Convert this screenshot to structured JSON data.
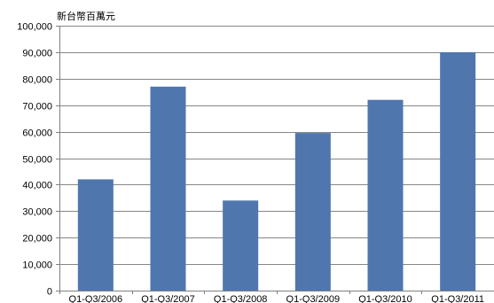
{
  "chart_data": {
    "type": "bar",
    "title": "",
    "ylabel": "新台幣百萬元",
    "xlabel": "",
    "categories": [
      "Q1-Q3/2006",
      "Q1-Q3/2007",
      "Q1-Q3/2008",
      "Q1-Q3/2009",
      "Q1-Q3/2010",
      "Q1-Q3/2011"
    ],
    "values": [
      42000,
      77000,
      34000,
      59500,
      72000,
      90000
    ],
    "ylim": [
      0,
      100000
    ],
    "yticks": [
      0,
      10000,
      20000,
      30000,
      40000,
      50000,
      60000,
      70000,
      80000,
      90000,
      100000
    ],
    "ytick_labels": [
      "0",
      "10,000",
      "20,000",
      "30,000",
      "40,000",
      "50,000",
      "60,000",
      "70,000",
      "80,000",
      "90,000",
      "100,000"
    ],
    "grid": true,
    "colors": {
      "bar": "#4F77AD",
      "grid": "#868686",
      "axis": "#808080"
    }
  }
}
